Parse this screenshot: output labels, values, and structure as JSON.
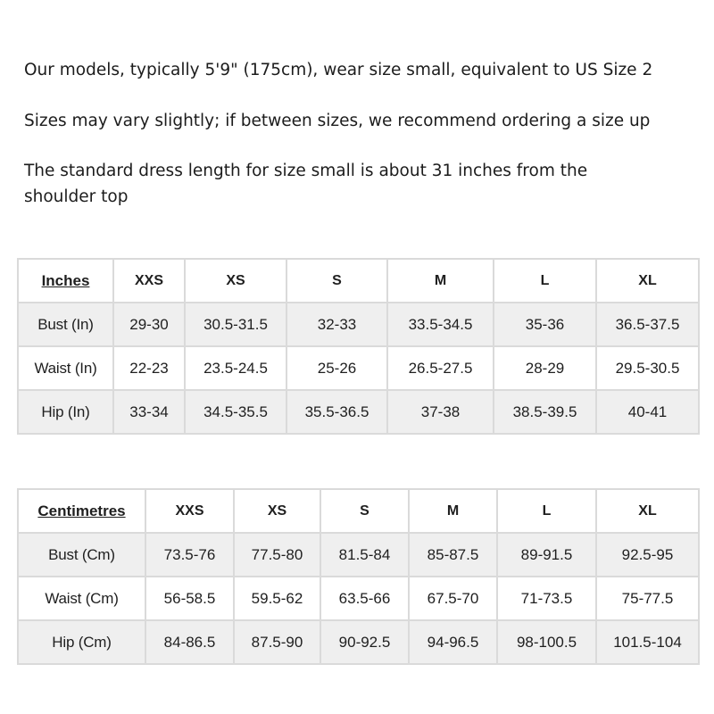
{
  "intro": [
    "Our models, typically 5'9\" (175cm), wear size small, equivalent to US Size 2",
    "Sizes may vary slightly; if between sizes, we recommend ordering a size up",
    "The standard dress length for size small is about 31 inches from the shoulder top"
  ],
  "inches_table": {
    "corner": "Inches",
    "sizes": [
      "XXS",
      "XS",
      "S",
      "M",
      "L",
      "XL"
    ],
    "rows": [
      {
        "label": "Bust (In)",
        "values": [
          "29-30",
          "30.5-31.5",
          "32-33",
          "33.5-34.5",
          "35-36",
          "36.5-37.5"
        ]
      },
      {
        "label": "Waist (In)",
        "values": [
          "22-23",
          "23.5-24.5",
          "25-26",
          "26.5-27.5",
          "28-29",
          "29.5-30.5"
        ]
      },
      {
        "label": "Hip (In)",
        "values": [
          "33-34",
          "34.5-35.5",
          "35.5-36.5",
          "37-38",
          "38.5-39.5",
          "40-41"
        ]
      }
    ]
  },
  "cm_table": {
    "corner": "Centimetres",
    "sizes": [
      "XXS",
      "XS",
      "S",
      "M",
      "L",
      "XL"
    ],
    "rows": [
      {
        "label": "Bust (Cm)",
        "values": [
          "73.5-76",
          "77.5-80",
          "81.5-84",
          "85-87.5",
          "89-91.5",
          "92.5-95"
        ]
      },
      {
        "label": "Waist (Cm)",
        "values": [
          "56-58.5",
          "59.5-62",
          "63.5-66",
          "67.5-70",
          "71-73.5",
          "75-77.5"
        ]
      },
      {
        "label": "Hip (Cm)",
        "values": [
          "84-86.5",
          "87.5-90",
          "90-92.5",
          "94-96.5",
          "98-100.5",
          "101.5-104"
        ]
      }
    ]
  },
  "colors": {
    "row_shade": "#efefef",
    "border": "#dadada",
    "text": "#1c1c1c"
  }
}
